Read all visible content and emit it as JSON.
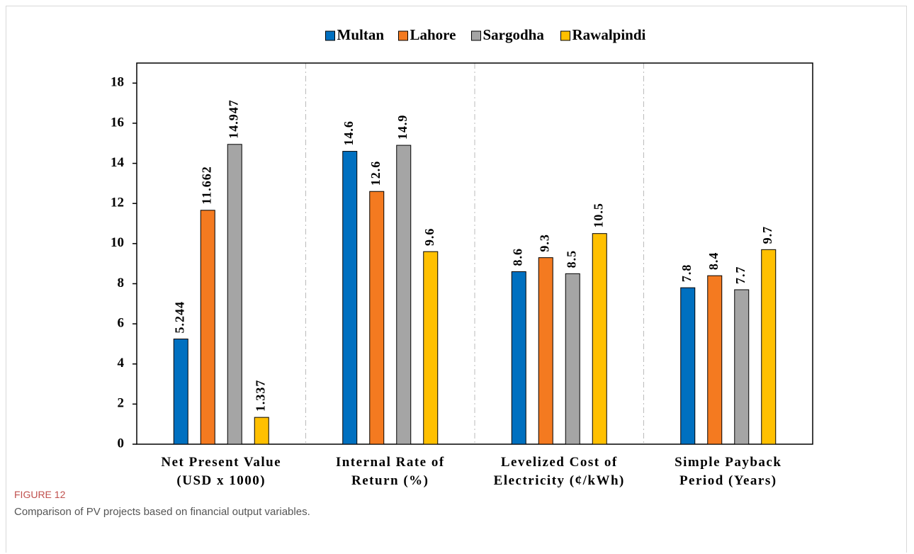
{
  "chart_data": {
    "type": "bar",
    "categories": [
      "Net Present Value\n(USD x 1000)",
      "Internal Rate of\nReturn (%)",
      "Levelized Cost of\nElectricity (¢/kWh)",
      "Simple Payback\nPeriod (Years)"
    ],
    "series": [
      {
        "name": "Multan",
        "color": "#0070c0",
        "values": [
          5.244,
          14.6,
          8.6,
          7.8
        ]
      },
      {
        "name": "Lahore",
        "color": "#f47a20",
        "values": [
          11.662,
          12.6,
          9.3,
          8.4
        ]
      },
      {
        "name": "Sargodha",
        "color": "#a5a5a5",
        "values": [
          14.947,
          14.9,
          8.5,
          7.7
        ]
      },
      {
        "name": "Rawalpindi",
        "color": "#ffc000",
        "values": [
          1.337,
          9.6,
          10.5,
          9.7
        ]
      }
    ],
    "ylim": [
      0,
      19
    ],
    "yticks": [
      0,
      2,
      4,
      6,
      8,
      10,
      12,
      14,
      16,
      18
    ],
    "legend": "top",
    "grid": false
  },
  "figure_label": "FIGURE 12",
  "caption": "Comparison of PV projects based on financial output variables."
}
